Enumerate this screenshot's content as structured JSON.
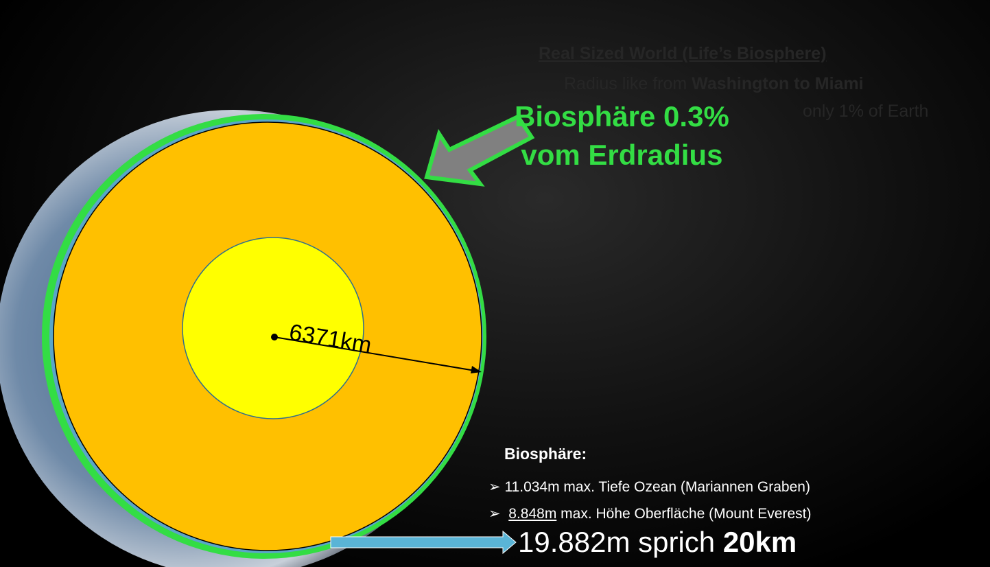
{
  "faded_heading": {
    "title": "Real Sized World (Life’s Biosphere)",
    "line1_start": "Radius like from ",
    "line1_bold": "Washington to Miami",
    "line2": "only 1% of Earth"
  },
  "callout": {
    "line1": "Biosphäre 0.3%",
    "line2": "vom Erdradius"
  },
  "radius_label": "6371km",
  "facts": {
    "heading": "Biosphäre:",
    "bullet1": "11.034m max. Tiefe Ozean (Mariannen Graben)",
    "bullet2_underlined": "8.848m",
    "bullet2_rest": " max. Höhe Oberfläche (Mount Everest)"
  },
  "result": {
    "start": "19.882m sprich ",
    "bold": "20km"
  }
}
